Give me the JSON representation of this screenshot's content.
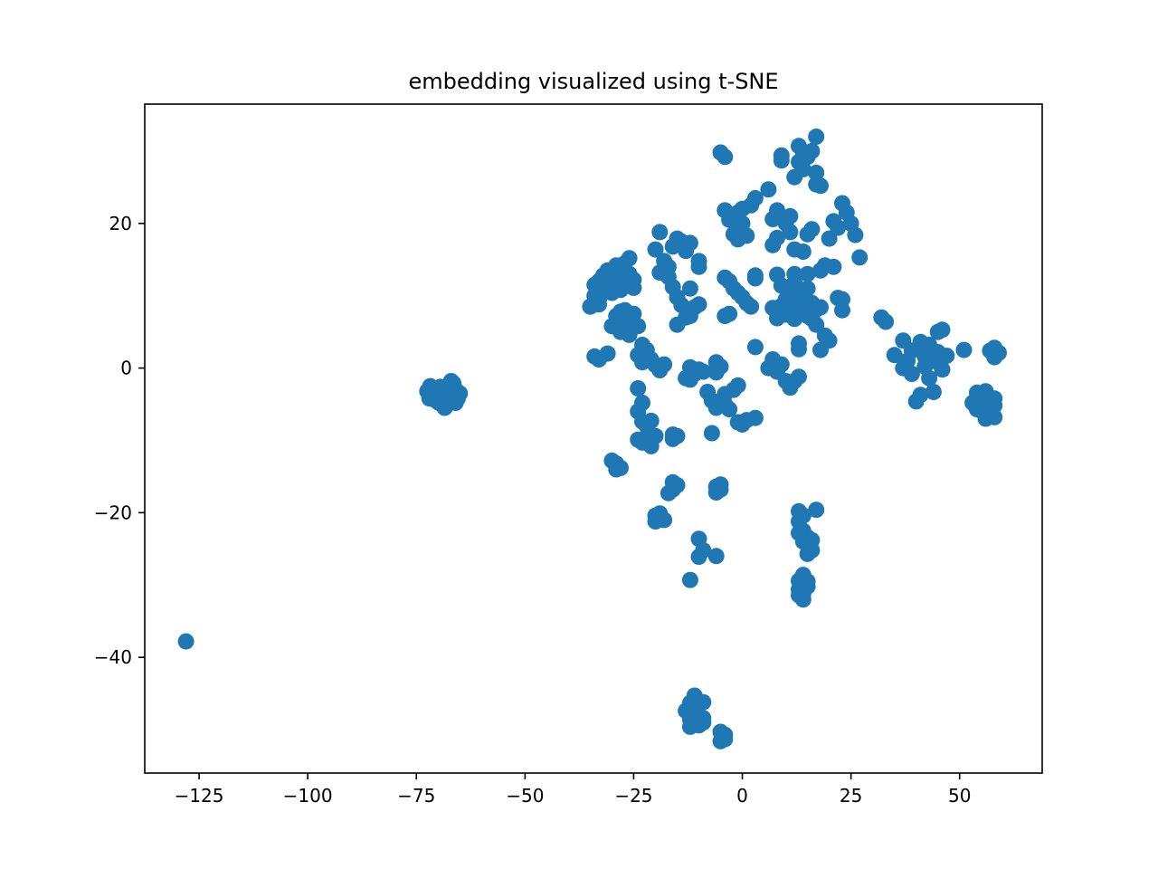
{
  "chart_data": {
    "type": "scatter",
    "title": "embedding visualized using t-SNE",
    "xlabel": "",
    "ylabel": "",
    "xlim": [
      -137.5,
      69
    ],
    "ylim": [
      -56,
      36.5
    ],
    "xticks": [
      -125,
      -100,
      -75,
      -50,
      -25,
      0,
      25,
      50
    ],
    "xtick_labels": [
      "−125",
      "−100",
      "−75",
      "−50",
      "−25",
      "0",
      "25",
      "50"
    ],
    "yticks": [
      20,
      0,
      -20,
      -40
    ],
    "ytick_labels": [
      "20",
      "0",
      "−20",
      "−40"
    ],
    "grid": false,
    "marker_color": "#1f77b4",
    "series": [
      {
        "points": [
          [
            -128,
            -37.8
          ],
          [
            -72.5,
            -3.2
          ],
          [
            -72,
            -4.2
          ],
          [
            -71.5,
            -2.8
          ],
          [
            -71,
            -3.6
          ],
          [
            -70.5,
            -4.5
          ],
          [
            -70,
            -3.3
          ],
          [
            -69.5,
            -2.6
          ],
          [
            -69,
            -4.1
          ],
          [
            -68.5,
            -5.5
          ],
          [
            -68,
            -3.5
          ],
          [
            -67.5,
            -2.6
          ],
          [
            -67,
            -3.9
          ],
          [
            -66.5,
            -2.1
          ],
          [
            -66,
            -4.8
          ],
          [
            -66,
            -3
          ],
          [
            -65.5,
            -4.2
          ],
          [
            -65,
            -3.5
          ],
          [
            -67,
            -1.8
          ],
          [
            -71.8,
            -2.5
          ],
          [
            -69.8,
            -4.8
          ],
          [
            -35,
            8.5
          ],
          [
            -34,
            10
          ],
          [
            -34,
            11.5
          ],
          [
            -33,
            8.8
          ],
          [
            -33,
            12
          ],
          [
            -32,
            12.8
          ],
          [
            -31,
            11
          ],
          [
            -31,
            13.5
          ],
          [
            -30,
            12.5
          ],
          [
            -29,
            14.2
          ],
          [
            -29,
            11.6
          ],
          [
            -28,
            13.2
          ],
          [
            -27,
            14.5
          ],
          [
            -27,
            12
          ],
          [
            -26,
            15.2
          ],
          [
            -26,
            13
          ],
          [
            -25,
            12.2
          ],
          [
            -25,
            11.1
          ],
          [
            -28,
            10.8
          ],
          [
            -30,
            10.4
          ],
          [
            -33,
            9.5
          ],
          [
            -30,
            5.8
          ],
          [
            -29,
            7.2
          ],
          [
            -28,
            5
          ],
          [
            -27,
            6.5
          ],
          [
            -27,
            8
          ],
          [
            -26,
            4.6
          ],
          [
            -26,
            6.8
          ],
          [
            -25,
            7.5
          ],
          [
            -24,
            5.8
          ],
          [
            -28,
            7.8
          ],
          [
            -34,
            1.6
          ],
          [
            -33,
            1.2
          ],
          [
            -31,
            2
          ],
          [
            -23,
            3.2
          ],
          [
            -22,
            2.5
          ],
          [
            -21,
            1.2
          ],
          [
            -20,
            0.4
          ],
          [
            -19,
            -0.3
          ],
          [
            -18,
            0.5
          ],
          [
            -24,
            1.8
          ],
          [
            -23,
            0.8
          ],
          [
            -24,
            -2.8
          ],
          [
            -24,
            -6
          ],
          [
            -23,
            -4.8
          ],
          [
            -23,
            -7.4
          ],
          [
            -22,
            -8
          ],
          [
            -22,
            -9.5
          ],
          [
            -21,
            -10.8
          ],
          [
            -21,
            -7.3
          ],
          [
            -20,
            -9.4
          ],
          [
            -24,
            -9.9
          ],
          [
            -23,
            -10.3
          ],
          [
            -30,
            -12.8
          ],
          [
            -29,
            -13.2
          ],
          [
            -28,
            -13.8
          ],
          [
            -29,
            -14
          ],
          [
            -16,
            -9.2
          ],
          [
            -16,
            -9.8
          ],
          [
            -15,
            -9.4
          ],
          [
            -17,
            -17.3
          ],
          [
            -16,
            -16.8
          ],
          [
            -15,
            -16.2
          ],
          [
            -16,
            -15.8
          ],
          [
            -20,
            -20.4
          ],
          [
            -20,
            -21.2
          ],
          [
            -19,
            -20.1
          ],
          [
            -18,
            -21
          ],
          [
            -6,
            -16.4
          ],
          [
            -5,
            -16.1
          ],
          [
            -6,
            -17.2
          ],
          [
            -5,
            -16.8
          ],
          [
            -10,
            -23.6
          ],
          [
            -9,
            -25.2
          ],
          [
            -10,
            -26.1
          ],
          [
            -6,
            -26
          ],
          [
            -12,
            -29.3
          ],
          [
            -19,
            18.8
          ],
          [
            -20,
            16.4
          ],
          [
            -19,
            13.2
          ],
          [
            -18,
            14.8
          ],
          [
            -17,
            12.6
          ],
          [
            -16,
            16.8
          ],
          [
            -15,
            17.9
          ],
          [
            -14,
            17.5
          ],
          [
            -13,
            16.2
          ],
          [
            -12,
            17.3
          ],
          [
            -10,
            14.8
          ],
          [
            -10,
            14
          ],
          [
            -16,
            11.2
          ],
          [
            -15,
            9.8
          ],
          [
            -14,
            8.7
          ],
          [
            -13,
            7
          ],
          [
            -12,
            7.2
          ],
          [
            -11,
            8.4
          ],
          [
            -10,
            8.8
          ],
          [
            -15,
            6
          ],
          [
            -12,
            11
          ],
          [
            -17,
            14
          ],
          [
            -12,
            0.1
          ],
          [
            -11,
            -0.8
          ],
          [
            -12,
            -1.6
          ],
          [
            -10,
            -0.2
          ],
          [
            -9,
            -0.5
          ],
          [
            -8,
            -3.3
          ],
          [
            -7,
            -4.5
          ],
          [
            -6,
            -5.5
          ],
          [
            -6,
            0.8
          ],
          [
            -5,
            0.2
          ],
          [
            -6,
            -0.6
          ],
          [
            -4,
            -3.6
          ],
          [
            -3,
            -5.7
          ],
          [
            -2,
            -3
          ],
          [
            -1,
            -2.4
          ],
          [
            -1,
            -7.5
          ],
          [
            0,
            -7.8
          ],
          [
            1,
            -7.2
          ],
          [
            3,
            -6.9
          ],
          [
            -13,
            -1.4
          ],
          [
            -7,
            -9
          ],
          [
            -4,
            -5
          ],
          [
            -5,
            29.8
          ],
          [
            -4,
            29.2
          ],
          [
            -4,
            21.8
          ],
          [
            -3,
            20.5
          ],
          [
            -2,
            18.5
          ],
          [
            -1,
            21.5
          ],
          [
            -1,
            17.8
          ],
          [
            0,
            22
          ],
          [
            1,
            18.3
          ],
          [
            2,
            22.5
          ],
          [
            3,
            23.5
          ],
          [
            0,
            20
          ],
          [
            -1,
            19.2
          ],
          [
            -4,
            12.5
          ],
          [
            -3,
            12
          ],
          [
            -2,
            11
          ],
          [
            -1,
            10.4
          ],
          [
            0,
            9.8
          ],
          [
            1,
            9
          ],
          [
            2,
            8.5
          ],
          [
            -3,
            7.5
          ],
          [
            -4,
            7.2
          ],
          [
            3,
            12.8
          ],
          [
            3,
            12.4
          ],
          [
            3,
            2.9
          ],
          [
            6,
            0
          ],
          [
            7,
            1.2
          ],
          [
            8,
            -0.5
          ],
          [
            9,
            0.5
          ],
          [
            10,
            -1.8
          ],
          [
            11,
            -2.7
          ],
          [
            12,
            -1.8
          ],
          [
            13,
            -1.2
          ],
          [
            6,
            24.7
          ],
          [
            7,
            20.6
          ],
          [
            7,
            17
          ],
          [
            8,
            18
          ],
          [
            8,
            21.8
          ],
          [
            9,
            29.4
          ],
          [
            9,
            28.7
          ],
          [
            10,
            20
          ],
          [
            11,
            21
          ],
          [
            11,
            18.8
          ],
          [
            12,
            16.4
          ],
          [
            12,
            13
          ],
          [
            13,
            30.7
          ],
          [
            13,
            28.5
          ],
          [
            14,
            29.5
          ],
          [
            14,
            27.5
          ],
          [
            14,
            16.1
          ],
          [
            15,
            29.2
          ],
          [
            16,
            30
          ],
          [
            16,
            19.2
          ],
          [
            17,
            32
          ],
          [
            17,
            27
          ],
          [
            17,
            25.4
          ],
          [
            18,
            25.2
          ],
          [
            15,
            18.5
          ],
          [
            12,
            26.4
          ],
          [
            7,
            8.3
          ],
          [
            8,
            6.9
          ],
          [
            8,
            12.9
          ],
          [
            9,
            8.6
          ],
          [
            9,
            11.4
          ],
          [
            10,
            7.4
          ],
          [
            10,
            9.5
          ],
          [
            11,
            10.8
          ],
          [
            11,
            8
          ],
          [
            12,
            11.8
          ],
          [
            12,
            9.3
          ],
          [
            12,
            6.8
          ],
          [
            13,
            10.2
          ],
          [
            13,
            7.6
          ],
          [
            14,
            9.8
          ],
          [
            14,
            8.3
          ],
          [
            15,
            11
          ],
          [
            15,
            7.2
          ],
          [
            16,
            6.8
          ],
          [
            16,
            9
          ],
          [
            17,
            8.1
          ],
          [
            17,
            6
          ],
          [
            18,
            8.4
          ],
          [
            15,
            13
          ],
          [
            13,
            2.6
          ],
          [
            13,
            3.4
          ],
          [
            18,
            2.5
          ],
          [
            19,
            4.5
          ],
          [
            20,
            3.8
          ],
          [
            18,
            13.5
          ],
          [
            19,
            14.2
          ],
          [
            20,
            17.9
          ],
          [
            21,
            20.3
          ],
          [
            22,
            19.4
          ],
          [
            23,
            22.8
          ],
          [
            24,
            21.5
          ],
          [
            25,
            20
          ],
          [
            26,
            18.4
          ],
          [
            27,
            15.3
          ],
          [
            22,
            9.7
          ],
          [
            23,
            8
          ],
          [
            21,
            14
          ],
          [
            23,
            9.5
          ],
          [
            32,
            7
          ],
          [
            33,
            6.4
          ],
          [
            35,
            1.8
          ],
          [
            37,
            3.8
          ],
          [
            37,
            0
          ],
          [
            38,
            1
          ],
          [
            39,
            2.4
          ],
          [
            39,
            -0.8
          ],
          [
            40,
            -4.6
          ],
          [
            41,
            -3.7
          ],
          [
            41,
            3.6
          ],
          [
            42,
            1.6
          ],
          [
            42,
            0.2
          ],
          [
            43,
            3.2
          ],
          [
            43,
            -1.4
          ],
          [
            44,
            1
          ],
          [
            44,
            -3.3
          ],
          [
            45,
            2.2
          ],
          [
            45,
            0.8
          ],
          [
            45,
            5
          ],
          [
            46,
            -0.2
          ],
          [
            46,
            5.3
          ],
          [
            47,
            1.7
          ],
          [
            51,
            2.5
          ],
          [
            53,
            -4.8
          ],
          [
            54,
            -3.4
          ],
          [
            54,
            -5.7
          ],
          [
            55,
            -3.6
          ],
          [
            55,
            -5.9
          ],
          [
            56,
            -3.2
          ],
          [
            56,
            -5.2
          ],
          [
            56,
            -7
          ],
          [
            57,
            -4.4
          ],
          [
            57,
            -6.4
          ],
          [
            58,
            -5.2
          ],
          [
            58,
            -6.8
          ],
          [
            58,
            -4.2
          ],
          [
            57,
            2.4
          ],
          [
            58,
            1.5
          ],
          [
            58,
            2.8
          ],
          [
            59,
            2.1
          ],
          [
            13,
            -19.8
          ],
          [
            13,
            -21.2
          ],
          [
            14,
            -22.5
          ],
          [
            14,
            -24
          ],
          [
            15,
            -23.4
          ],
          [
            15,
            -25.7
          ],
          [
            16,
            -23.8
          ],
          [
            16,
            -25.2
          ],
          [
            17,
            -19.6
          ],
          [
            13,
            -22.8
          ],
          [
            14,
            -20.4
          ],
          [
            13,
            -29.4
          ],
          [
            13,
            -30.6
          ],
          [
            14,
            -28.6
          ],
          [
            14,
            -31.2
          ],
          [
            14,
            -32
          ],
          [
            15,
            -30.2
          ],
          [
            15,
            -29.5
          ],
          [
            13,
            -31.4
          ],
          [
            -13,
            -47.4
          ],
          [
            -12,
            -46.3
          ],
          [
            -12,
            -48.6
          ],
          [
            -12,
            -49.6
          ],
          [
            -11,
            -45.3
          ],
          [
            -11,
            -47.8
          ],
          [
            -11,
            -49.2
          ],
          [
            -10,
            -46.5
          ],
          [
            -10,
            -48.3
          ],
          [
            -10,
            -49.4
          ],
          [
            -9,
            -46.2
          ],
          [
            -9,
            -48.4
          ],
          [
            -9,
            -49
          ],
          [
            -11,
            -46.8
          ],
          [
            -5,
            -50.3
          ],
          [
            -5,
            -51.6
          ],
          [
            -4,
            -50.7
          ],
          [
            -4,
            -51.3
          ]
        ]
      }
    ]
  }
}
